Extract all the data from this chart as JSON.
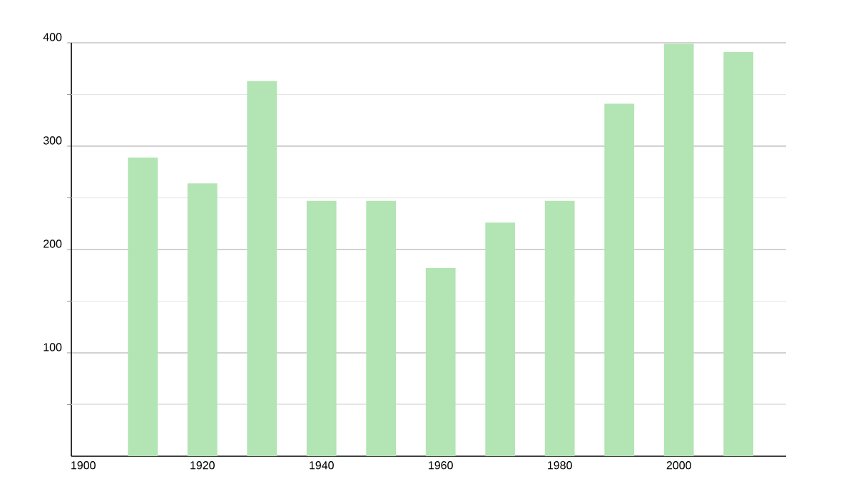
{
  "chart_data": {
    "type": "bar",
    "x": [
      1910,
      1920,
      1930,
      1940,
      1950,
      1960,
      1970,
      1980,
      1990,
      2000,
      2010
    ],
    "values": [
      289,
      264,
      363,
      247,
      247,
      182,
      226,
      247,
      341,
      399,
      391
    ],
    "color": "#b3e4b3",
    "xlim": [
      1898,
      2018
    ],
    "xticks": [
      1900,
      1920,
      1940,
      1960,
      1980,
      2000
    ],
    "ylim": [
      0,
      400
    ],
    "yticks": [
      {
        "value": 50,
        "label": null
      },
      100,
      {
        "value": 150,
        "label": null
      },
      200,
      {
        "value": 250,
        "label": null
      },
      300,
      {
        "value": 350,
        "label": null
      },
      400
    ],
    "grid": "y"
  }
}
